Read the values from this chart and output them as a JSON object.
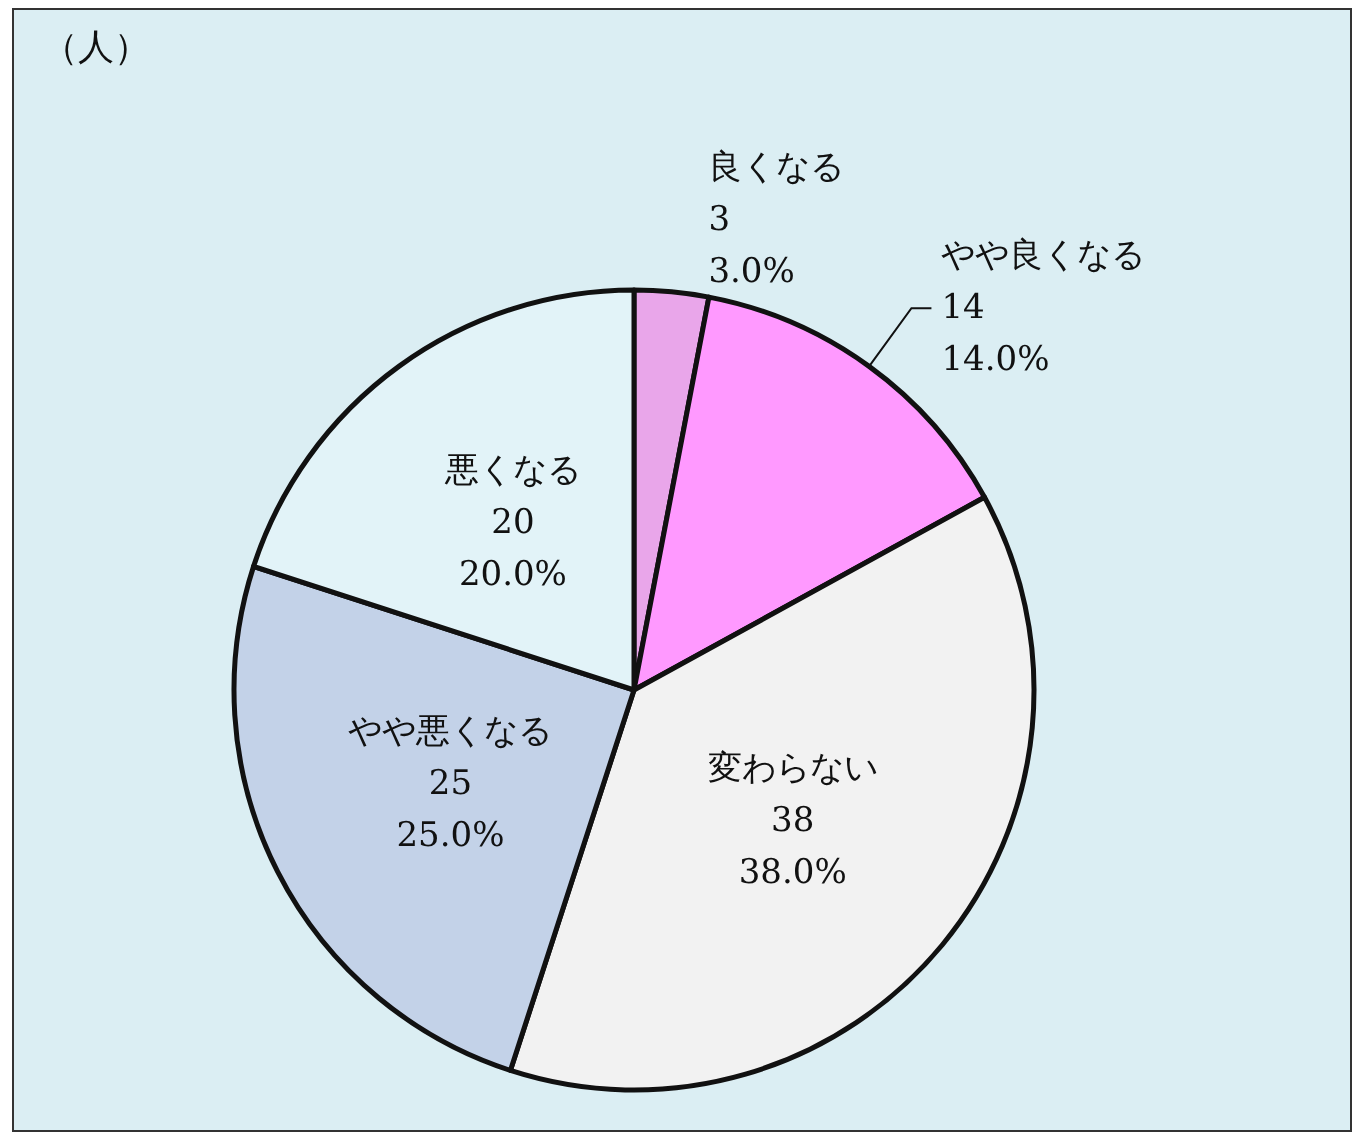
{
  "chart_data": {
    "type": "pie",
    "categories": [
      "良くなる",
      "やや良くなる",
      "変わらない",
      "やや悪くなる",
      "悪くなる"
    ],
    "values": [
      3,
      14,
      38,
      25,
      20
    ],
    "value_labels": [
      "3\n3.0%",
      "14\n14.0%",
      "38\n38.0%",
      "25\n25.0%",
      "20\n20.0%"
    ],
    "colors": [
      "#e9a6ea",
      "#ff99ff",
      "#f2f2f2",
      "#c3d2e8",
      "#e2f3f8"
    ],
    "annotations": [
      "（人）"
    ],
    "legend": false
  }
}
